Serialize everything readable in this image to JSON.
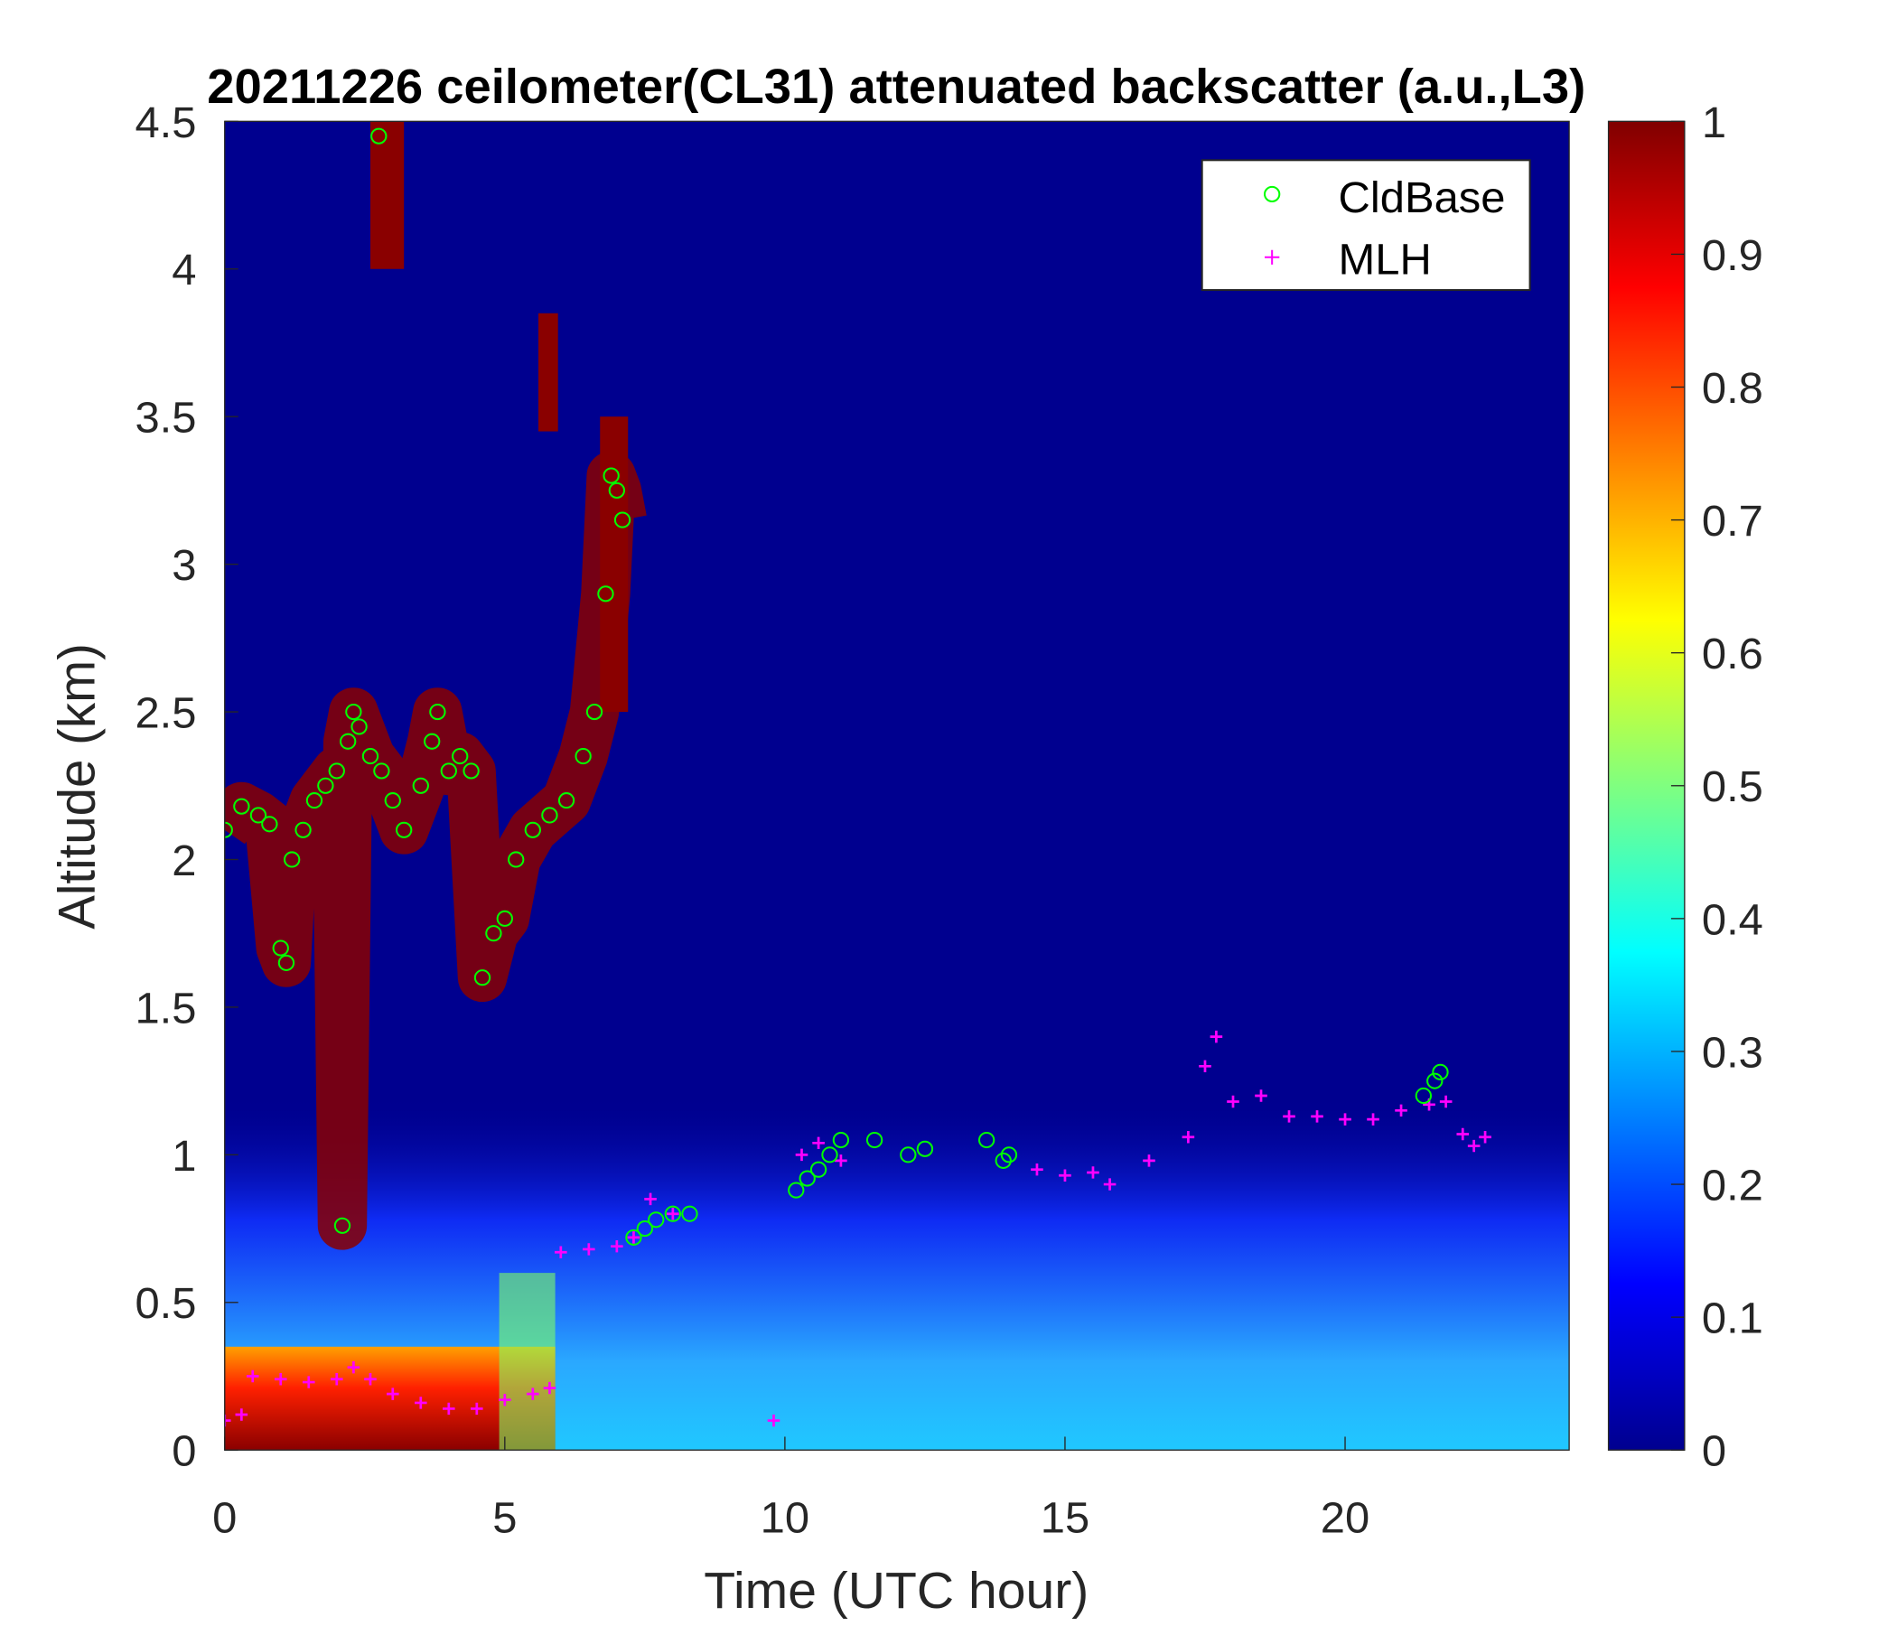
{
  "chart_data": {
    "type": "heatmap",
    "title": "20211226 ceilometer(CL31) attenuated backscatter (a.u.,L3)",
    "xlabel": "Time (UTC hour)",
    "ylabel": "Altitude (km)",
    "xlim": [
      0,
      24
    ],
    "ylim": [
      0,
      4.5
    ],
    "xticks": [
      "0",
      "5",
      "10",
      "15",
      "20"
    ],
    "yticks": [
      "0",
      "0.5",
      "1",
      "1.5",
      "2",
      "2.5",
      "3",
      "3.5",
      "4",
      "4.5"
    ],
    "colorbar": {
      "colormap": "jet",
      "range": [
        0,
        1
      ],
      "ticks": [
        "0",
        "0.1",
        "0.2",
        "0.3",
        "0.4",
        "0.5",
        "0.6",
        "0.7",
        "0.8",
        "0.9",
        "1"
      ]
    },
    "legend": {
      "placement": "top-right",
      "entries": [
        {
          "label": "CldBase",
          "marker": "circle",
          "color": "#00ff00"
        },
        {
          "label": "MLH",
          "marker": "plus",
          "color": "#ff00ff"
        }
      ]
    },
    "series": [
      {
        "name": "CldBase",
        "x": [
          0,
          0.3,
          0.6,
          0.8,
          1.0,
          1.1,
          1.2,
          1.4,
          1.6,
          1.8,
          2.0,
          2.2,
          2.3,
          2.4,
          2.6,
          2.75,
          2.8,
          3.0,
          3.2,
          3.5,
          3.7,
          3.8,
          4.0,
          4.2,
          4.4,
          4.6,
          4.8,
          5.0,
          5.2,
          5.5,
          5.8,
          6.1,
          6.4,
          6.6,
          6.8,
          6.9,
          7.0,
          7.1,
          2.1,
          7.3,
          7.5,
          7.7,
          8.0,
          8.3,
          10.2,
          10.4,
          10.6,
          10.8,
          11.0,
          11.6,
          12.2,
          12.5,
          13.6,
          13.9,
          14.0,
          21.4,
          21.6,
          21.7
        ],
        "y": [
          2.1,
          2.18,
          2.15,
          2.12,
          1.7,
          1.65,
          2.0,
          2.1,
          2.2,
          2.25,
          2.3,
          2.4,
          2.5,
          2.45,
          2.35,
          4.45,
          2.3,
          2.2,
          2.1,
          2.25,
          2.4,
          2.5,
          2.3,
          2.35,
          2.3,
          1.6,
          1.75,
          1.8,
          2.0,
          2.1,
          2.15,
          2.2,
          2.35,
          2.5,
          2.9,
          3.3,
          3.25,
          3.15,
          0.76,
          0.72,
          0.75,
          0.78,
          0.8,
          0.8,
          0.88,
          0.92,
          0.95,
          1.0,
          1.05,
          1.05,
          1.0,
          1.02,
          1.05,
          0.98,
          1.0,
          1.2,
          1.25,
          1.28
        ]
      },
      {
        "name": "MLH",
        "x": [
          0,
          0.3,
          0.5,
          1.0,
          1.5,
          2.0,
          2.3,
          2.6,
          3.0,
          3.5,
          4.0,
          4.5,
          5.0,
          5.5,
          5.8,
          6.0,
          6.5,
          7.0,
          7.3,
          7.6,
          8.0,
          9.8,
          10.3,
          10.6,
          11.0,
          14.5,
          15.0,
          15.5,
          15.8,
          16.5,
          17.2,
          17.5,
          17.7,
          18.0,
          18.5,
          19.0,
          19.5,
          20.0,
          20.5,
          21.0,
          21.5,
          21.8,
          22.1,
          22.3,
          22.5
        ],
        "y": [
          0.1,
          0.12,
          0.25,
          0.24,
          0.23,
          0.24,
          0.28,
          0.24,
          0.19,
          0.16,
          0.14,
          0.14,
          0.17,
          0.19,
          0.21,
          0.67,
          0.68,
          0.69,
          0.72,
          0.85,
          0.8,
          0.1,
          1.0,
          1.04,
          0.98,
          0.95,
          0.93,
          0.94,
          0.9,
          0.98,
          1.06,
          1.3,
          1.4,
          1.18,
          1.2,
          1.13,
          1.13,
          1.12,
          1.12,
          1.15,
          1.17,
          1.18,
          1.07,
          1.03,
          1.06
        ]
      }
    ]
  }
}
